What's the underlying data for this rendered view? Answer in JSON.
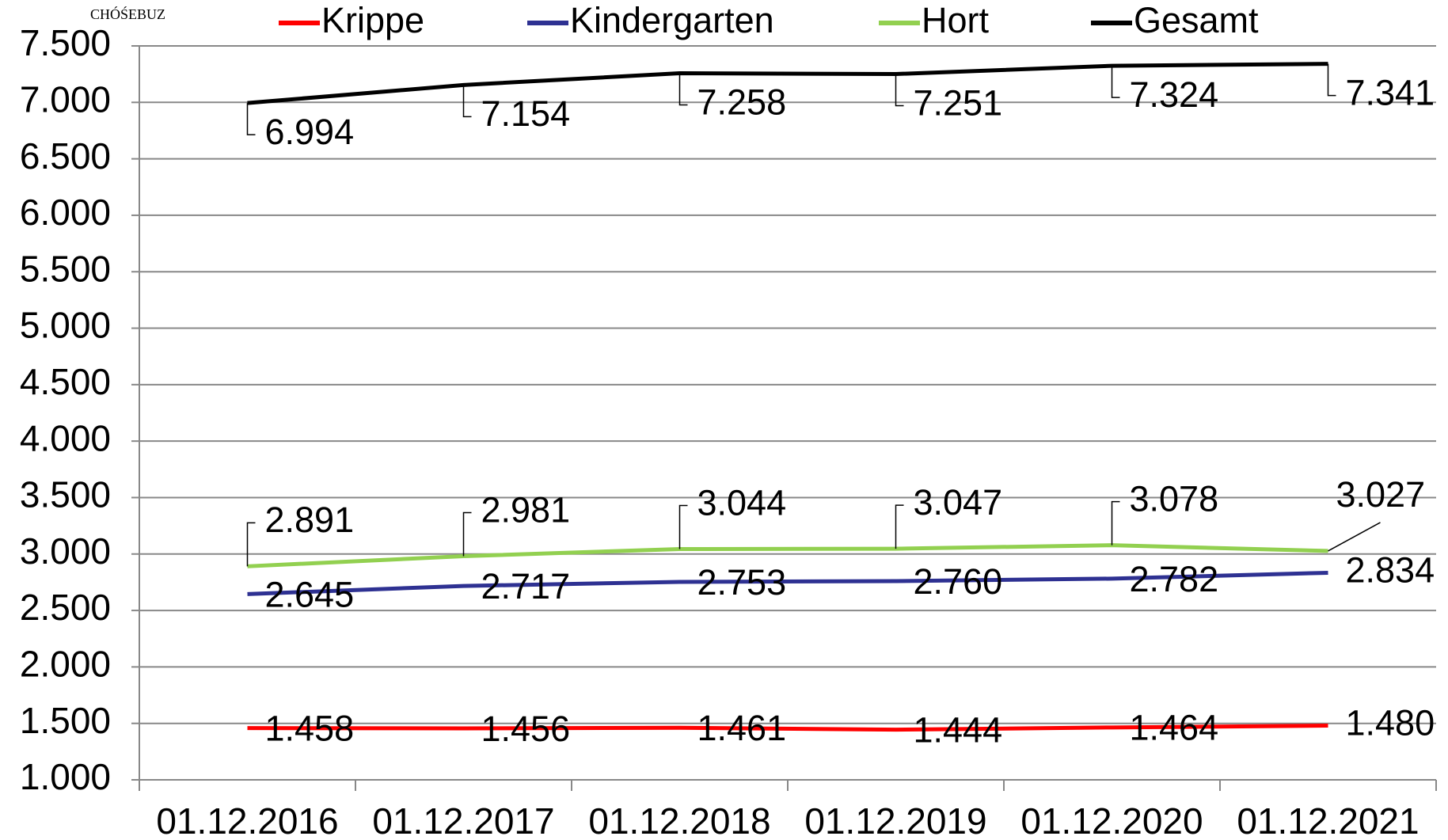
{
  "chart_data": {
    "type": "line",
    "watermark": "CHÓŚEBUZ",
    "categories": [
      "01.12.2016",
      "01.12.2017",
      "01.12.2018",
      "01.12.2019",
      "01.12.2020",
      "01.12.2021"
    ],
    "series": [
      {
        "name": "Krippe",
        "color": "#ff0000",
        "values": [
          1458,
          1456,
          1461,
          1444,
          1464,
          1480
        ],
        "value_labels": [
          "1.458",
          "1.456",
          "1.461",
          "1.444",
          "1.464",
          "1.480"
        ]
      },
      {
        "name": "Kindergarten",
        "color": "#2e3192",
        "values": [
          2645,
          2717,
          2753,
          2760,
          2782,
          2834
        ],
        "value_labels": [
          "2.645",
          "2.717",
          "2.753",
          "2.760",
          "2.782",
          "2.834"
        ]
      },
      {
        "name": "Hort",
        "color": "#92d050",
        "values": [
          2891,
          2981,
          3044,
          3047,
          3078,
          3027
        ],
        "value_labels": [
          "2.891",
          "2.981",
          "3.044",
          "3.047",
          "3.078",
          "3.027"
        ]
      },
      {
        "name": "Gesamt",
        "color": "#000000",
        "values": [
          6994,
          7154,
          7258,
          7251,
          7324,
          7341
        ],
        "value_labels": [
          "6.994",
          "7.154",
          "7.258",
          "7.251",
          "7.324",
          "7.341"
        ]
      }
    ],
    "ylim": [
      1000,
      7500
    ],
    "yticks": [
      {
        "value": 1000,
        "label": "1.000"
      },
      {
        "value": 1500,
        "label": "1.500"
      },
      {
        "value": 2000,
        "label": "2.000"
      },
      {
        "value": 2500,
        "label": "2.500"
      },
      {
        "value": 3000,
        "label": "3.000"
      },
      {
        "value": 3500,
        "label": "3.500"
      },
      {
        "value": 4000,
        "label": "4.000"
      },
      {
        "value": 4500,
        "label": "4.500"
      },
      {
        "value": 5000,
        "label": "5.000"
      },
      {
        "value": 5500,
        "label": "5.500"
      },
      {
        "value": 6000,
        "label": "6.000"
      },
      {
        "value": 6500,
        "label": "6.500"
      },
      {
        "value": 7000,
        "label": "7.000"
      },
      {
        "value": 7500,
        "label": "7.500"
      }
    ],
    "grid": true,
    "legend": "top"
  }
}
